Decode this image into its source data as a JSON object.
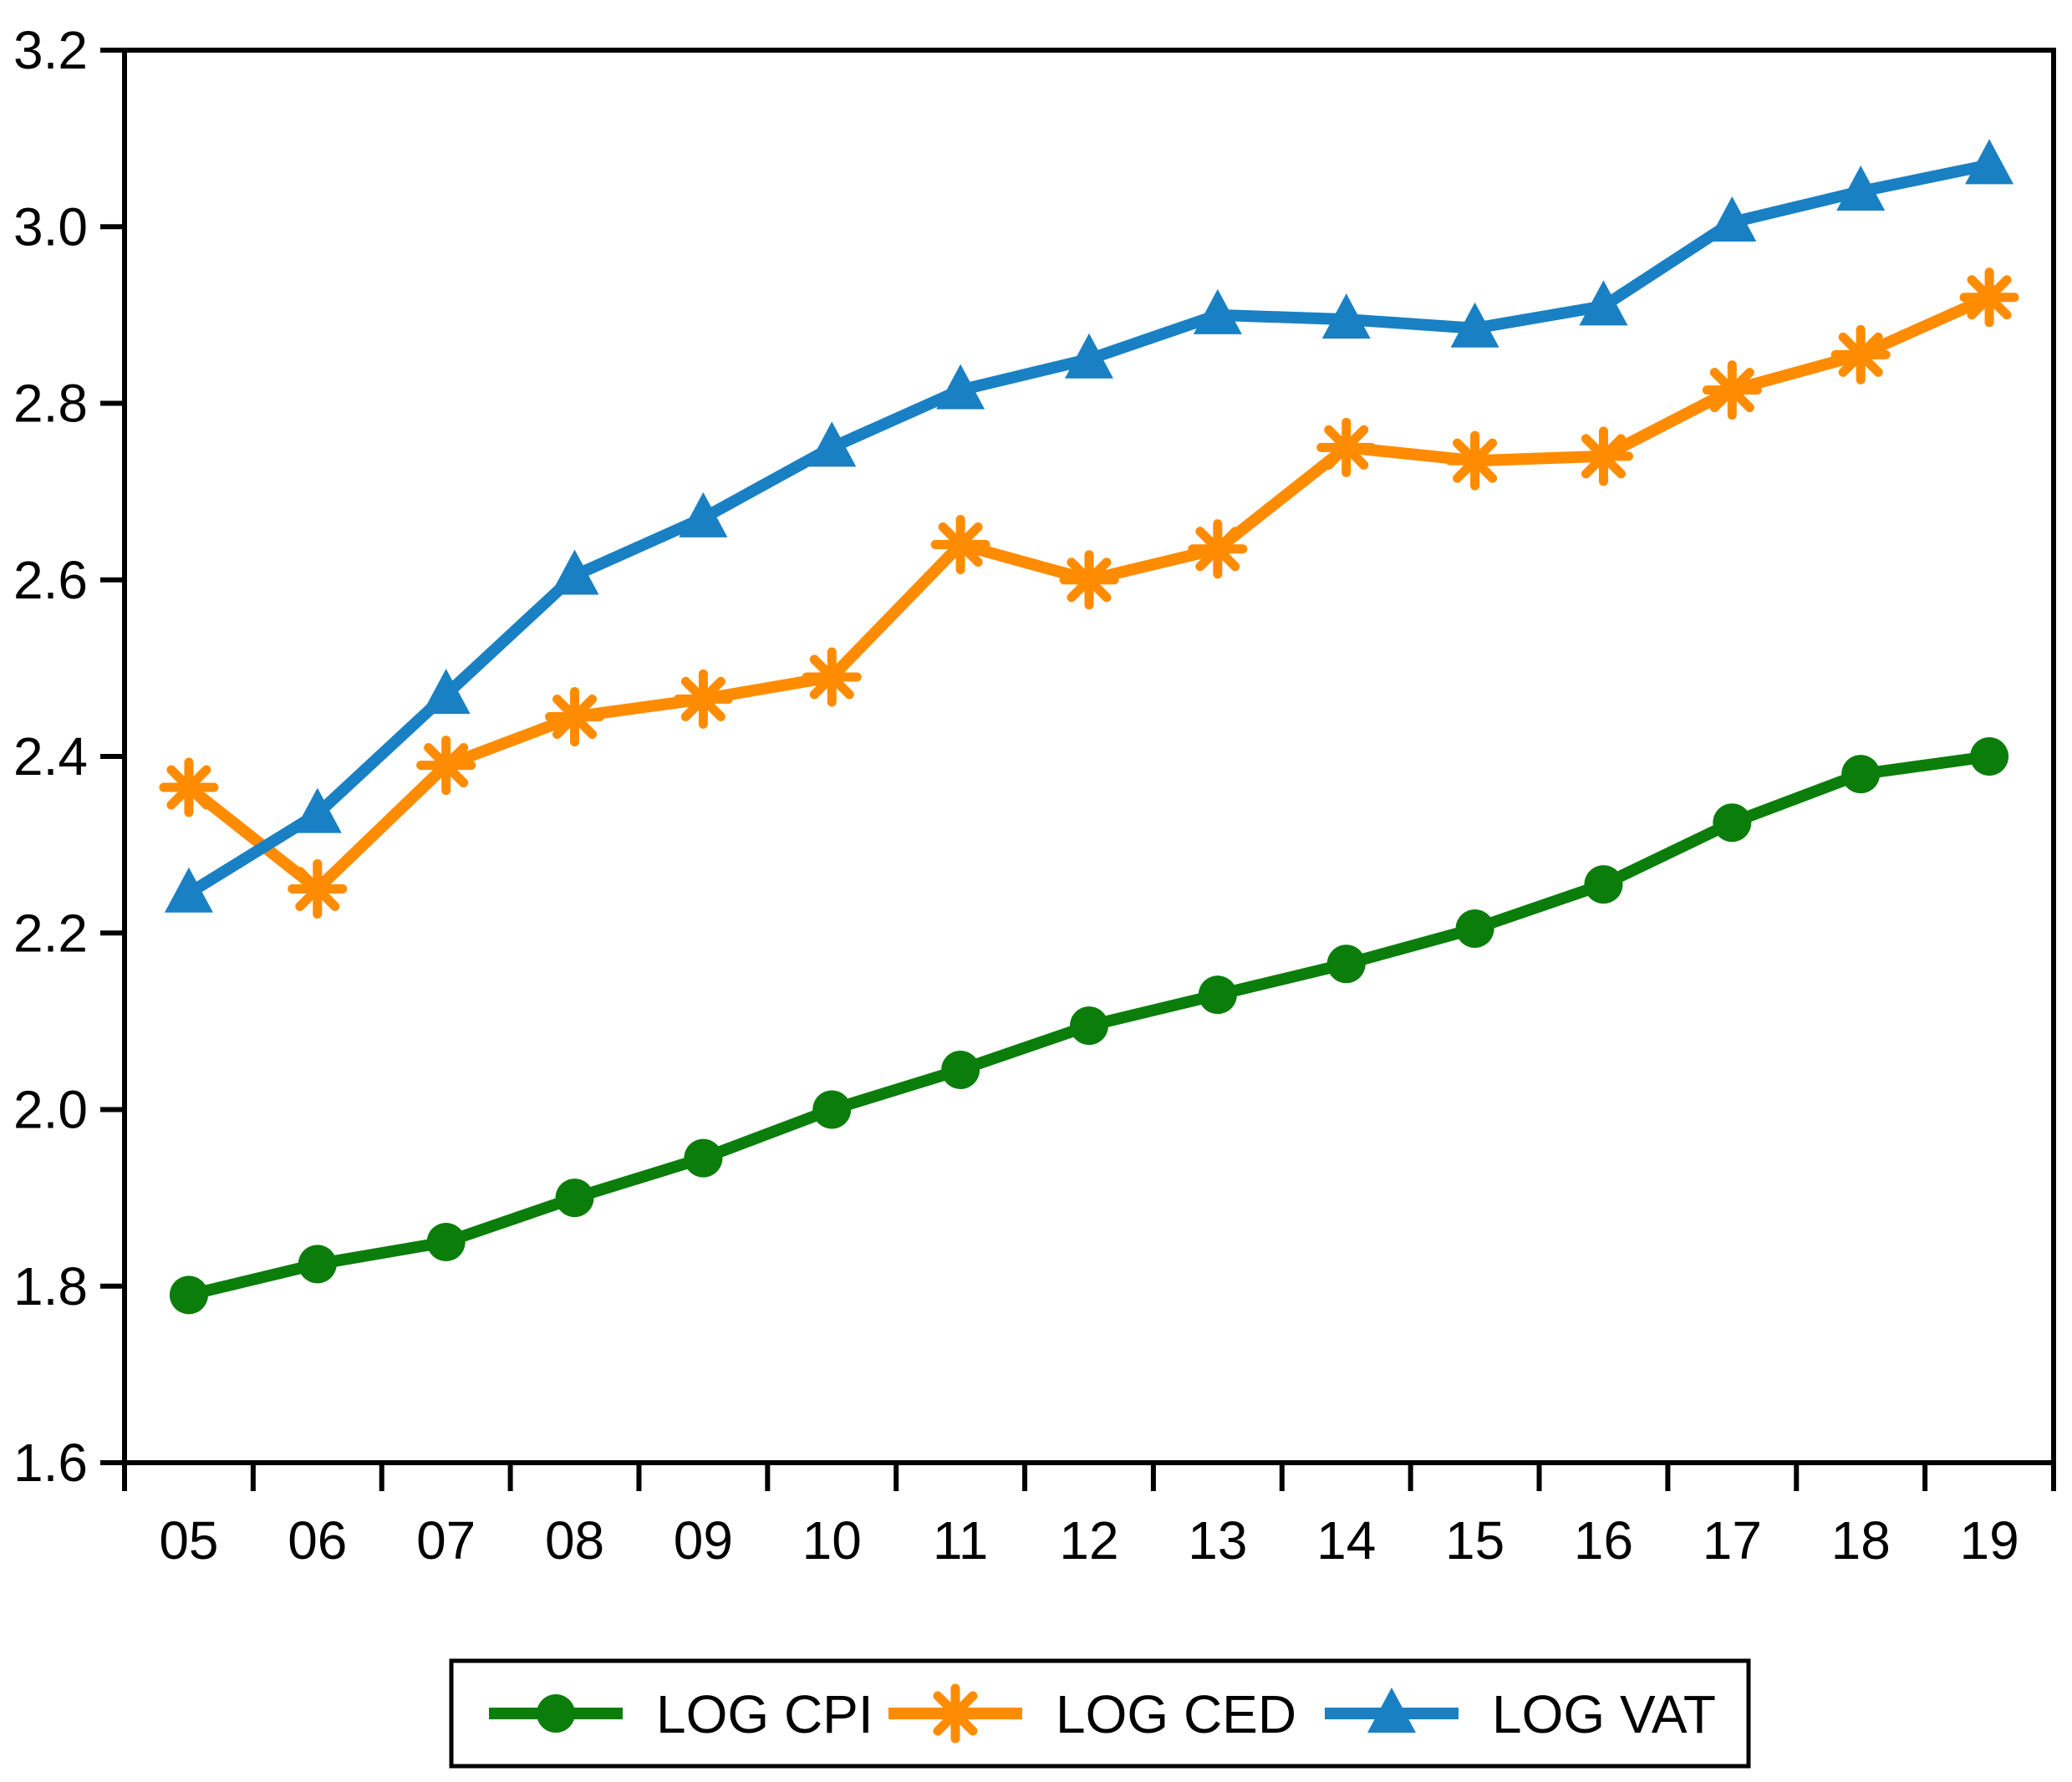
{
  "chart_data": {
    "type": "line",
    "title": "",
    "categories": [
      "05",
      "06",
      "07",
      "08",
      "09",
      "10",
      "11",
      "12",
      "13",
      "14",
      "15",
      "16",
      "17",
      "18",
      "19"
    ],
    "xlabel": "",
    "ylabel": "",
    "ylim": [
      1.6,
      3.2
    ],
    "ytick_labels": [
      "1.6",
      "1.8",
      "2.0",
      "2.2",
      "2.4",
      "2.6",
      "2.8",
      "3.0",
      "3.2"
    ],
    "ytick_values": [
      1.6,
      1.8,
      2.0,
      2.2,
      2.4,
      2.6,
      2.8,
      3.0,
      3.2
    ],
    "grid": false,
    "background": "#FFFFFF",
    "axis_color": "#000000",
    "legend_position": "bottom-center",
    "series": [
      {
        "name": "LOG CPI",
        "marker": "circle",
        "color": "#0B7D0B",
        "values": [
          1.79,
          1.825,
          1.85,
          1.9,
          1.945,
          2.0,
          2.045,
          2.095,
          2.13,
          2.165,
          2.205,
          2.255,
          2.325,
          2.38,
          2.4
        ]
      },
      {
        "name": "LOG CED",
        "marker": "asterisk",
        "color": "#FF8C00",
        "values": [
          2.365,
          2.25,
          2.39,
          2.445,
          2.465,
          2.49,
          2.64,
          2.6,
          2.635,
          2.75,
          2.735,
          2.74,
          2.815,
          2.855,
          2.92
        ]
      },
      {
        "name": "LOG VAT",
        "marker": "triangle",
        "color": "#1980C4",
        "values": [
          2.245,
          2.335,
          2.47,
          2.605,
          2.67,
          2.75,
          2.815,
          2.85,
          2.9,
          2.895,
          2.885,
          2.91,
          3.005,
          3.04,
          3.07
        ]
      }
    ]
  }
}
